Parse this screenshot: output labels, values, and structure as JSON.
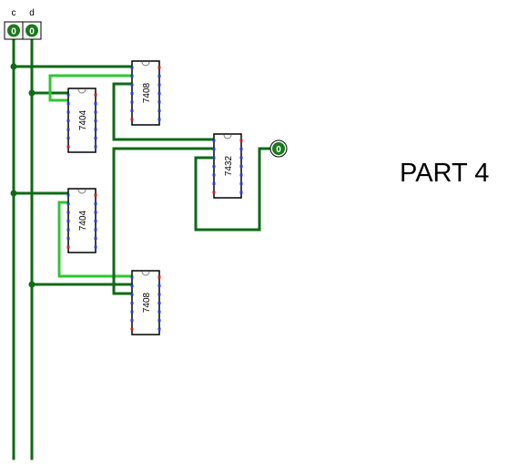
{
  "title": "PART 4",
  "inputs": [
    {
      "id": "c",
      "label": "c",
      "value": "0"
    },
    {
      "id": "d",
      "label": "d",
      "value": "0"
    }
  ],
  "output": {
    "value": "0"
  },
  "chips": [
    {
      "id": "and-top",
      "part": "7408"
    },
    {
      "id": "not-top",
      "part": "7404"
    },
    {
      "id": "or",
      "part": "7432"
    },
    {
      "id": "not-bottom",
      "part": "7404"
    },
    {
      "id": "and-bottom",
      "part": "7408"
    }
  ],
  "colors": {
    "wire_dark": "#0d6b14",
    "wire_light": "#2ec82e",
    "led": "#1a7a1a",
    "pin_blue": "#2a3cdc",
    "pin_red": "#d21e1e"
  }
}
